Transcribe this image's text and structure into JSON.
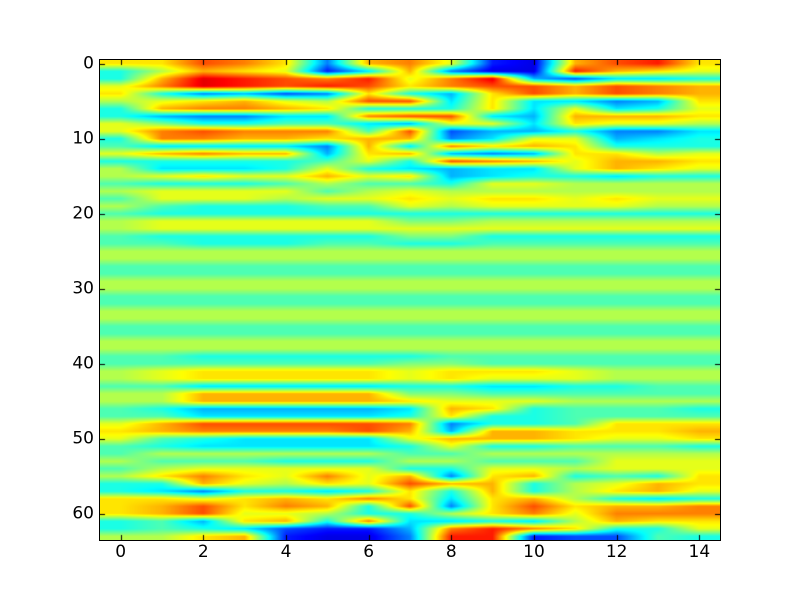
{
  "figure": {
    "background_color": "#ffffff",
    "frame_color": "#000000",
    "tick_color": "#000000"
  },
  "chart_data": {
    "type": "heatmap",
    "title": "",
    "xlabel": "",
    "ylabel": "",
    "colormap": "jet",
    "interpolation": "bilinear",
    "grid": false,
    "legend": "none",
    "xlim": [
      -0.5,
      14.5
    ],
    "ylim": [
      63.5,
      -0.5
    ],
    "y_inverted": true,
    "n_cols": 15,
    "n_rows": 64,
    "x_ticks": [
      0,
      2,
      4,
      6,
      8,
      10,
      12,
      14
    ],
    "x_tick_labels": [
      "0",
      "2",
      "4",
      "6",
      "8",
      "10",
      "12",
      "14"
    ],
    "y_ticks": [
      0,
      10,
      20,
      30,
      40,
      50,
      60
    ],
    "y_tick_labels": [
      "0",
      "10",
      "20",
      "30",
      "40",
      "50",
      "60"
    ],
    "vmin": -1.0,
    "vmax": 1.0,
    "value_scale": 0.1,
    "values": [
      [
        3,
        3,
        6,
        5,
        3,
        -5,
        4,
        5,
        2,
        -7,
        -8,
        4,
        6,
        7,
        3
      ],
      [
        -2,
        1,
        4,
        3,
        2,
        -7,
        -3,
        4,
        -5,
        -8,
        -8,
        7,
        4,
        3,
        2
      ],
      [
        -2,
        4,
        8,
        7,
        6,
        5,
        7,
        2,
        5,
        8,
        -4,
        -6,
        -3,
        -3,
        -2
      ],
      [
        2,
        5,
        8,
        7,
        6,
        7,
        6,
        3,
        5,
        6,
        6,
        4,
        6,
        5,
        4
      ],
      [
        3,
        -2,
        -5,
        -4,
        -6,
        -5,
        3,
        -2,
        -4,
        3,
        6,
        4,
        6,
        5,
        4
      ],
      [
        1,
        2,
        3,
        4,
        2,
        1,
        6,
        6,
        -3,
        3,
        -3,
        -3,
        -5,
        -4,
        3
      ],
      [
        -2,
        4,
        5,
        5,
        4,
        3,
        -2,
        -2,
        -2,
        3,
        -3,
        2,
        -3,
        -2,
        2
      ],
      [
        -2,
        -4,
        -5,
        -5,
        -3,
        -3,
        5,
        6,
        6,
        -3,
        -4,
        4,
        4,
        4,
        3
      ],
      [
        2,
        0,
        -2,
        -2,
        -1,
        -1,
        -3,
        -4,
        2,
        2,
        -3,
        3,
        2,
        2,
        1
      ],
      [
        2,
        5,
        6,
        5,
        5,
        5,
        -1,
        6,
        -6,
        -4,
        -4,
        -2,
        -5,
        -5,
        -3
      ],
      [
        -2,
        5,
        5,
        4,
        4,
        3,
        4,
        4,
        -5,
        -3,
        2,
        2,
        -4,
        -3,
        -2
      ],
      [
        -1,
        -3,
        -3,
        -3,
        -3,
        -5,
        4,
        -3,
        5,
        3,
        4,
        3,
        -2,
        -2,
        -2
      ],
      [
        2,
        4,
        5,
        4,
        4,
        -4,
        3,
        4,
        -4,
        -5,
        -4,
        3,
        3,
        1,
        2
      ],
      [
        -2,
        -2,
        -2,
        -2,
        -2,
        -1,
        2,
        -2,
        6,
        5,
        4,
        2,
        4,
        4,
        3
      ],
      [
        1,
        -3,
        -3,
        -3,
        -2,
        2,
        -2,
        -3,
        -4,
        -3,
        -3,
        2,
        4,
        3,
        2
      ],
      [
        1,
        2,
        3,
        2,
        2,
        4,
        2,
        3,
        -4,
        -3,
        -2,
        -2,
        -3,
        -2,
        -2
      ],
      [
        -1,
        -2,
        -2,
        -2,
        -1,
        1,
        -1,
        -1,
        -2,
        2,
        2,
        1,
        1,
        1,
        1
      ],
      [
        1,
        2,
        2,
        2,
        2,
        -1,
        1,
        2,
        1,
        1,
        1,
        1,
        1,
        1,
        1
      ],
      [
        -1,
        2,
        2,
        2,
        1,
        2,
        2,
        3,
        2,
        3,
        3,
        2,
        3,
        2,
        2
      ],
      [
        1,
        -1,
        -2,
        -2,
        -2,
        -1,
        -1,
        2,
        1,
        2,
        2,
        2,
        2,
        1,
        1
      ],
      [
        -1,
        -2,
        -2,
        -2,
        -2,
        -2,
        -2,
        -2,
        -2,
        -2,
        -2,
        -2,
        -2,
        -2,
        -2
      ],
      [
        1,
        2,
        2,
        2,
        2,
        2,
        2,
        0,
        0,
        1,
        1,
        1,
        1,
        1,
        1
      ],
      [
        1,
        2,
        2,
        2,
        2,
        2,
        2,
        2,
        2,
        2,
        2,
        2,
        2,
        2,
        2
      ],
      [
        -1,
        -2,
        -2,
        -2,
        -2,
        -2,
        -2,
        0,
        0,
        -2,
        -2,
        -2,
        -2,
        -2,
        -2
      ],
      [
        -1,
        -1,
        -2,
        -2,
        -2,
        -1,
        -1,
        -2,
        -2,
        -1,
        -1,
        -1,
        -1,
        -1,
        -1
      ],
      [
        1,
        1,
        1,
        1,
        1,
        1,
        1,
        1,
        1,
        1,
        1,
        1,
        1,
        1,
        1
      ],
      [
        1,
        1,
        1,
        1,
        1,
        1,
        1,
        1,
        1,
        1,
        1,
        1,
        1,
        1,
        1
      ],
      [
        -1,
        -1,
        -1,
        -1,
        -1,
        -1,
        -1,
        -1,
        -1,
        -1,
        -1,
        -1,
        -1,
        -1,
        -1
      ],
      [
        -1,
        -1,
        -1,
        -1,
        -1,
        -1,
        -1,
        -1,
        -1,
        -1,
        -1,
        -1,
        -1,
        -1,
        -1
      ],
      [
        1,
        1,
        1,
        1,
        1,
        1,
        1,
        1,
        1,
        1,
        1,
        1,
        1,
        1,
        1
      ],
      [
        1,
        1,
        1,
        1,
        1,
        1,
        1,
        1,
        1,
        1,
        1,
        1,
        1,
        1,
        1
      ],
      [
        -1,
        -1,
        -1,
        -1,
        -1,
        -1,
        -1,
        -1,
        -1,
        -1,
        -1,
        -1,
        -1,
        -1,
        -1
      ],
      [
        -1,
        -1,
        -1,
        -1,
        -1,
        -1,
        -1,
        -1,
        -1,
        -1,
        -1,
        -1,
        -1,
        -1,
        -1
      ],
      [
        1,
        1,
        1,
        1,
        1,
        1,
        1,
        1,
        1,
        1,
        1,
        1,
        1,
        1,
        1
      ],
      [
        1,
        1,
        1,
        1,
        1,
        1,
        1,
        1,
        1,
        1,
        1,
        1,
        1,
        1,
        1
      ],
      [
        -1,
        -1,
        -1,
        -1,
        -1,
        -1,
        -1,
        -1,
        -1,
        -1,
        -1,
        -1,
        -1,
        -1,
        -1
      ],
      [
        -1,
        -1,
        -1,
        -1,
        -1,
        -1,
        -1,
        -1,
        -1,
        -1,
        -1,
        -1,
        -1,
        -1,
        -1
      ],
      [
        1,
        1,
        1,
        1,
        1,
        1,
        1,
        1,
        1,
        1,
        1,
        1,
        1,
        1,
        1
      ],
      [
        1,
        1,
        1,
        1,
        1,
        1,
        1,
        1,
        1,
        1,
        1,
        1,
        1,
        1,
        1
      ],
      [
        -1,
        -1,
        -2,
        -2,
        -2,
        -2,
        -2,
        -2,
        -1,
        -1,
        -1,
        -1,
        -1,
        -1,
        -1
      ],
      [
        -1,
        -1,
        -1,
        -1,
        -1,
        -1,
        -1,
        0,
        0,
        -1,
        -1,
        -1,
        -1,
        -1,
        -1
      ],
      [
        1,
        2,
        3,
        3,
        3,
        3,
        3,
        2,
        3,
        3,
        3,
        2,
        1,
        1,
        1
      ],
      [
        1,
        2,
        3,
        3,
        3,
        3,
        3,
        2,
        3,
        2,
        2,
        2,
        1,
        1,
        1
      ],
      [
        -1,
        -1,
        -3,
        -3,
        -3,
        -3,
        -3,
        -2,
        -2,
        -3,
        -3,
        -2,
        -2,
        -1,
        -1
      ],
      [
        1,
        1,
        4,
        4,
        4,
        4,
        4,
        0,
        0,
        -1,
        -1,
        -1,
        -1,
        -1,
        -1
      ],
      [
        1,
        1,
        4,
        4,
        4,
        4,
        4,
        3,
        2,
        2,
        2,
        1,
        1,
        1,
        1
      ],
      [
        -1,
        -2,
        -4,
        -4,
        -4,
        -4,
        -4,
        -3,
        4,
        3,
        -2,
        -1,
        -1,
        -1,
        -2
      ],
      [
        -1,
        -1,
        -3,
        -3,
        -3,
        -3,
        -3,
        -2,
        3,
        -2,
        -2,
        -1,
        -1,
        -1,
        -1
      ],
      [
        2,
        4,
        6,
        6,
        6,
        6,
        6,
        5,
        -5,
        -2,
        -2,
        -1,
        3,
        3,
        3
      ],
      [
        3,
        4,
        5,
        5,
        5,
        5,
        6,
        4,
        -4,
        4,
        4,
        3,
        3,
        3,
        4
      ],
      [
        2,
        -1,
        -2,
        -3,
        -3,
        -3,
        -3,
        2,
        4,
        4,
        4,
        3,
        2,
        2,
        3
      ],
      [
        -1,
        -2,
        -3,
        -3,
        -3,
        -3,
        -3,
        -2,
        2,
        -2,
        -2,
        -1,
        -1,
        -1,
        -2
      ],
      [
        -1,
        1,
        1,
        1,
        1,
        1,
        1,
        -1,
        -1,
        1,
        1,
        1,
        1,
        1,
        1
      ],
      [
        1,
        -1,
        -1,
        -1,
        -2,
        -2,
        -2,
        1,
        1,
        -1,
        -1,
        -1,
        2,
        2,
        2
      ],
      [
        -1,
        1,
        2,
        2,
        2,
        2,
        2,
        -2,
        -2,
        2,
        2,
        1,
        2,
        2,
        2
      ],
      [
        1,
        3,
        5,
        3,
        2,
        5,
        2,
        4,
        -5,
        3,
        4,
        -2,
        -1,
        -2,
        3
      ],
      [
        -2,
        -2,
        4,
        2,
        1,
        3,
        2,
        6,
        4,
        4,
        -2,
        1,
        2,
        4,
        3
      ],
      [
        -2,
        -3,
        -5,
        -2,
        -2,
        -3,
        -2,
        3,
        -2,
        4,
        -2,
        1,
        3,
        4,
        2
      ],
      [
        3,
        3,
        2,
        3,
        4,
        3,
        5,
        3,
        -3,
        3,
        4,
        1,
        -2,
        -3,
        -2
      ],
      [
        3,
        4,
        6,
        3,
        5,
        4,
        -2,
        6,
        -5,
        3,
        6,
        3,
        4,
        4,
        5
      ],
      [
        3,
        4,
        6,
        2,
        2,
        1,
        -2,
        -2,
        1,
        3,
        5,
        2,
        5,
        5,
        5
      ],
      [
        -2,
        -1,
        -4,
        3,
        4,
        -2,
        5,
        -3,
        -3,
        -2,
        -3,
        1,
        4,
        3,
        3
      ],
      [
        -2,
        -1,
        -2,
        -3,
        -6,
        -7,
        -7,
        -4,
        5,
        7,
        5,
        3,
        -2,
        -2,
        2
      ],
      [
        1,
        1,
        3,
        4,
        -7,
        -8,
        -8,
        -5,
        7,
        7,
        -7,
        -6,
        -6,
        -1,
        -2
      ]
    ]
  }
}
